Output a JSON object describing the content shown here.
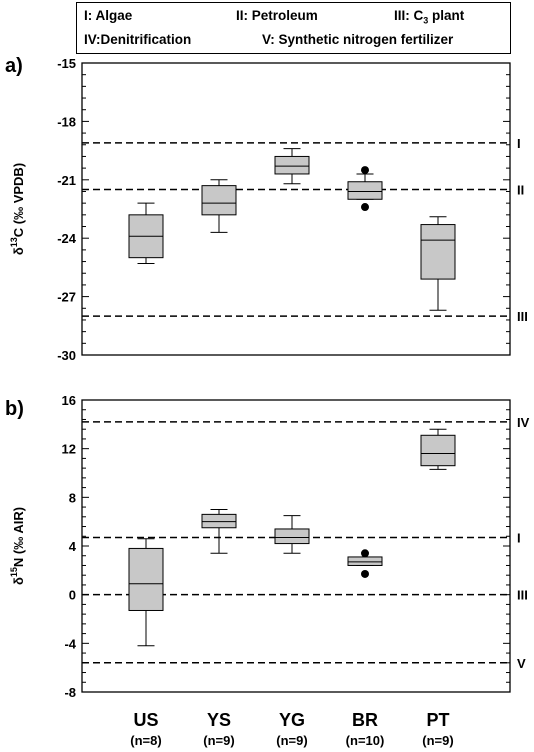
{
  "legend": {
    "items": [
      {
        "text": "I: Algae"
      },
      {
        "text": "II: Petroleum"
      },
      {
        "text": "III: C",
        "sub": "3",
        "after": " plant"
      },
      {
        "text": "IV:Denitrification"
      },
      {
        "text": "V: Synthetic nitrogen fertilizer"
      }
    ]
  },
  "colors": {
    "box_fill": "#c8c8c8",
    "stroke": "#000000",
    "background": "#ffffff"
  },
  "chart_data": [
    {
      "type": "box",
      "panel_label": "a)",
      "ylabel_prefix": "δ",
      "ylabel_sup": "13",
      "ylabel_rest": "C (‰ VPDB)",
      "ylim": [
        -30,
        -15
      ],
      "yticks": [
        -30,
        -27,
        -24,
        -21,
        -18,
        -15
      ],
      "categories": [
        "US",
        "YS",
        "YG",
        "BR",
        "PT"
      ],
      "boxes": [
        {
          "min": -25.3,
          "q1": -25.0,
          "median": -23.9,
          "q3": -22.8,
          "max": -22.2,
          "outliers": []
        },
        {
          "min": -23.7,
          "q1": -22.8,
          "median": -22.2,
          "q3": -21.3,
          "max": -21.0,
          "outliers": []
        },
        {
          "min": -21.2,
          "q1": -20.7,
          "median": -20.3,
          "q3": -19.8,
          "max": -19.4,
          "outliers": []
        },
        {
          "min": -22.0,
          "q1": -22.0,
          "median": -21.6,
          "q3": -21.1,
          "max": -20.7,
          "outliers": [
            -20.5,
            -22.4
          ]
        },
        {
          "min": -27.7,
          "q1": -26.1,
          "median": -24.1,
          "q3": -23.3,
          "max": -22.9,
          "outliers": []
        }
      ],
      "reference_lines": [
        {
          "label": "I",
          "value": -19.1
        },
        {
          "label": "II",
          "value": -21.5
        },
        {
          "label": "III",
          "value": -28.0
        }
      ]
    },
    {
      "type": "box",
      "panel_label": "b)",
      "ylabel_prefix": "δ",
      "ylabel_sup": "15",
      "ylabel_rest": "N (‰ AIR)",
      "ylim": [
        -8,
        16
      ],
      "yticks": [
        -8,
        -4,
        0,
        4,
        8,
        12,
        16
      ],
      "categories": [
        "US",
        "YS",
        "YG",
        "BR",
        "PT"
      ],
      "category_counts": [
        "(n=8)",
        "(n=9)",
        "(n=9)",
        "(n=10)",
        "(n=9)"
      ],
      "boxes": [
        {
          "min": -4.2,
          "q1": -1.3,
          "median": 0.9,
          "q3": 3.8,
          "max": 4.6,
          "outliers": []
        },
        {
          "min": 3.4,
          "q1": 5.5,
          "median": 6.0,
          "q3": 6.6,
          "max": 7.0,
          "outliers": []
        },
        {
          "min": 3.4,
          "q1": 4.2,
          "median": 4.7,
          "q3": 5.4,
          "max": 6.5,
          "outliers": []
        },
        {
          "min": 2.4,
          "q1": 2.4,
          "median": 2.7,
          "q3": 3.1,
          "max": 3.1,
          "outliers": [
            3.4,
            1.7
          ]
        },
        {
          "min": 10.3,
          "q1": 10.6,
          "median": 11.6,
          "q3": 13.1,
          "max": 13.6,
          "outliers": []
        }
      ],
      "reference_lines": [
        {
          "label": "IV",
          "value": 14.2
        },
        {
          "label": "I",
          "value": 4.7
        },
        {
          "label": "III",
          "value": 0.0
        },
        {
          "label": "V",
          "value": -5.6
        }
      ]
    }
  ]
}
